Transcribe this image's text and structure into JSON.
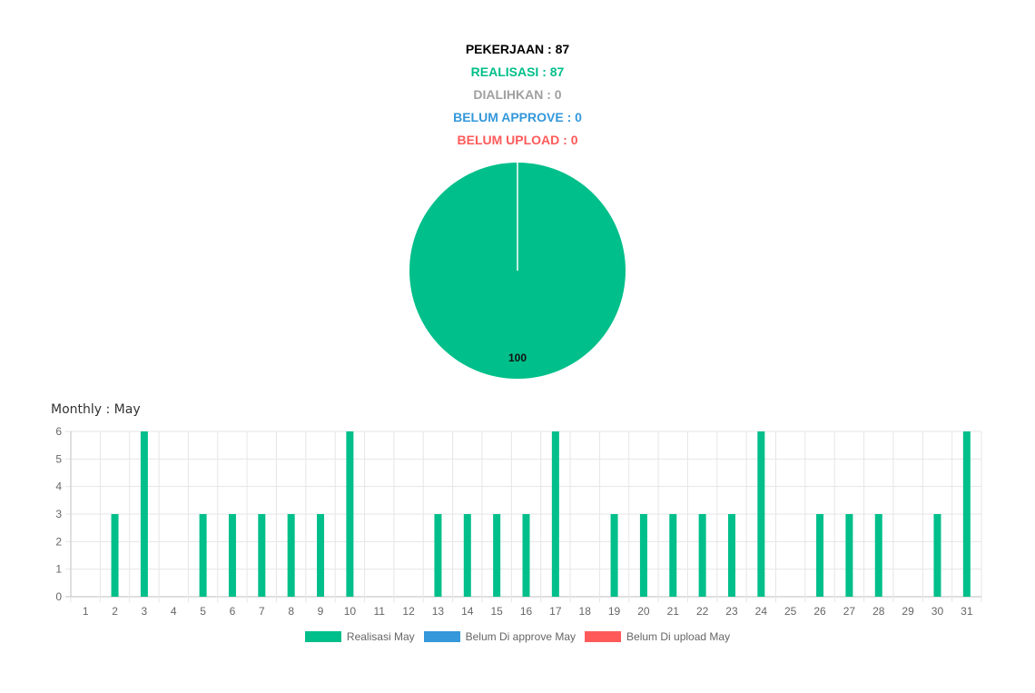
{
  "summary": {
    "pekerjaan": "PEKERJAAN : 87",
    "realisasi": "REALISASI : 87",
    "dialihkan": "DIALIHKAN : 0",
    "belum_approve": "BELUM APPROVE : 0",
    "belum_upload": "BELUM UPLOAD : 0"
  },
  "colors": {
    "pekerjaan": "#000000",
    "realisasi": "#00bf8a",
    "dialihkan": "#a0a0a0",
    "belum_approve": "#3498db",
    "belum_upload": "#ff5a5a"
  },
  "monthly": {
    "title": "Monthly : May"
  },
  "chart_data": [
    {
      "type": "pie",
      "slices": [
        {
          "value": 100,
          "label": "100",
          "color": "#00bf8a"
        }
      ]
    },
    {
      "type": "bar",
      "categories": [
        "1",
        "2",
        "3",
        "4",
        "5",
        "6",
        "7",
        "8",
        "9",
        "10",
        "11",
        "12",
        "13",
        "14",
        "15",
        "16",
        "17",
        "18",
        "19",
        "20",
        "21",
        "22",
        "23",
        "24",
        "25",
        "26",
        "27",
        "28",
        "29",
        "30",
        "31"
      ],
      "ylim": [
        0,
        6
      ],
      "yticks": [
        0,
        1,
        2,
        3,
        4,
        5,
        6
      ],
      "grid": true,
      "legend_position": "bottom",
      "series": [
        {
          "name": "Realisasi May",
          "color": "#00bf8a",
          "values": [
            0,
            3,
            6,
            0,
            3,
            3,
            3,
            3,
            3,
            6,
            0,
            0,
            3,
            3,
            3,
            3,
            6,
            0,
            3,
            3,
            3,
            3,
            3,
            6,
            0,
            3,
            3,
            3,
            0,
            3,
            6
          ]
        },
        {
          "name": "Belum Di approve May",
          "color": "#3498db",
          "values": [
            0,
            0,
            0,
            0,
            0,
            0,
            0,
            0,
            0,
            0,
            0,
            0,
            0,
            0,
            0,
            0,
            0,
            0,
            0,
            0,
            0,
            0,
            0,
            0,
            0,
            0,
            0,
            0,
            0,
            0,
            0
          ]
        },
        {
          "name": "Belum Di upload May",
          "color": "#ff5a5a",
          "values": [
            0,
            0,
            0,
            0,
            0,
            0,
            0,
            0,
            0,
            0,
            0,
            0,
            0,
            0,
            0,
            0,
            0,
            0,
            0,
            0,
            0,
            0,
            0,
            0,
            0,
            0,
            0,
            0,
            0,
            0,
            0
          ]
        }
      ]
    }
  ]
}
